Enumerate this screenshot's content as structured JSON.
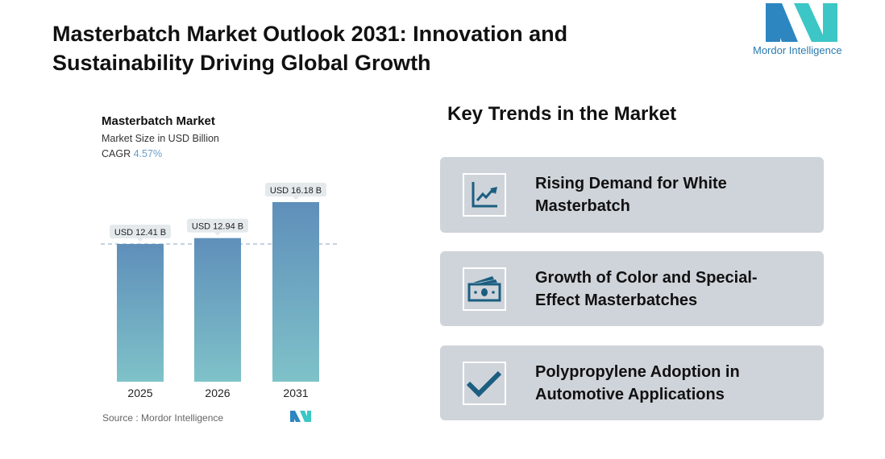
{
  "header": {
    "title": "Masterbatch Market Outlook 2031: Innovation and Sustainability Driving Global Growth",
    "logo_text": "Mordor Intelligence"
  },
  "chart_data": {
    "type": "bar",
    "title": "Masterbatch Market",
    "subtitle": "Market Size in USD Billion",
    "cagr_label": "CAGR",
    "cagr_value": "4.57%",
    "categories": [
      "2025",
      "2026",
      "2031"
    ],
    "values": [
      12.41,
      12.94,
      16.18
    ],
    "data_labels": [
      "USD 12.41 B",
      "USD 12.94 B",
      "USD 16.18 B"
    ],
    "ylim": [
      0,
      16.18
    ],
    "grid": false,
    "reference_line": 12.41,
    "colors": {
      "bar_top": "#5f8fba",
      "bar_bottom": "#7fc2c9"
    }
  },
  "source": "Source :  Mordor Intelligence",
  "trends": {
    "heading": "Key Trends in the Market",
    "items": [
      {
        "icon": "trending-chart-icon",
        "label": "Rising Demand for White Masterbatch"
      },
      {
        "icon": "money-icon",
        "label": "Growth of Color and Special-Effect Masterbatches"
      },
      {
        "icon": "checkmark-icon",
        "label": "Polypropylene Adoption in Automotive Applications"
      }
    ]
  },
  "colors": {
    "accent": "#1b5e80",
    "card": "#cfd4da"
  }
}
